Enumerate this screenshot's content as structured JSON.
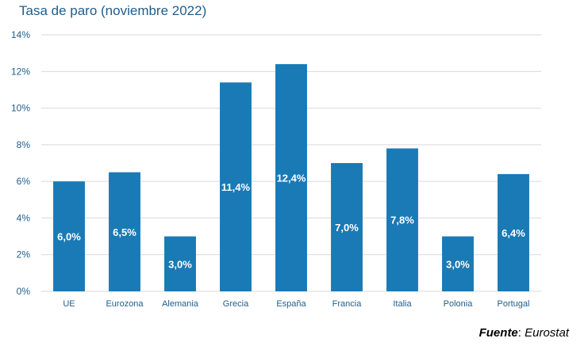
{
  "chart_data": {
    "type": "bar",
    "title": "Tasa de paro (noviembre 2022)",
    "categories": [
      "UE",
      "Eurozona",
      "Alemania",
      "Grecia",
      "España",
      "Francia",
      "Italia",
      "Polonia",
      "Portugal"
    ],
    "values": [
      6.0,
      6.5,
      3.0,
      11.4,
      12.4,
      7.0,
      7.8,
      3.0,
      6.4
    ],
    "data_labels": [
      "6,0%",
      "6,5%",
      "3,0%",
      "11,4%",
      "12,4%",
      "7,0%",
      "7,8%",
      "3,0%",
      "6,4%"
    ],
    "yticks": [
      0,
      2,
      4,
      6,
      8,
      10,
      12,
      14
    ],
    "ytick_labels": [
      "0%",
      "2%",
      "4%",
      "6%",
      "8%",
      "10%",
      "12%",
      "14%"
    ],
    "ylim": [
      0,
      14
    ],
    "xlabel": "",
    "ylabel": "",
    "grid": true,
    "bar_color": "#1a7ab5",
    "axis_text_color": "#1f5d8c",
    "grid_color": "#d9d9d9"
  },
  "source": {
    "label": "Fuente",
    "separator": ": ",
    "value": "Eurostat"
  }
}
